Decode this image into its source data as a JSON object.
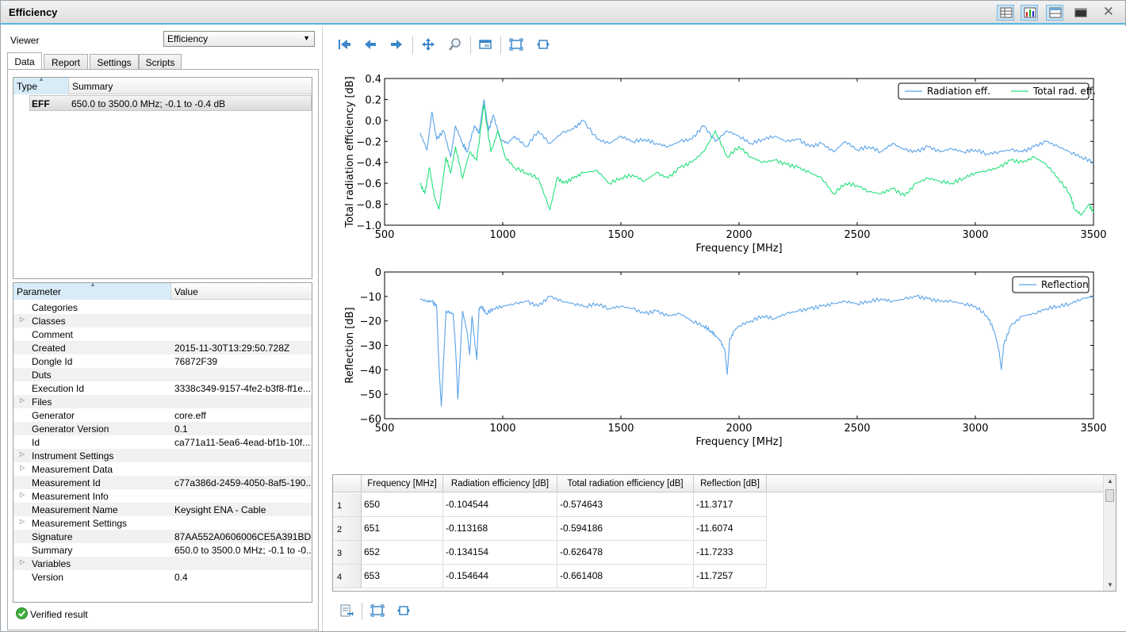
{
  "window": {
    "title": "Efficiency"
  },
  "left": {
    "viewer_label": "Viewer",
    "viewer_value": "Efficiency",
    "tabs": [
      "Data",
      "Report",
      "Settings",
      "Scripts"
    ],
    "results_grid": {
      "headers": [
        "Type",
        "Summary"
      ],
      "rows": [
        {
          "type": "EFF",
          "summary": "650.0 to 3500.0 MHz; -0.1 to -0.4 dB"
        }
      ]
    },
    "params_grid": {
      "headers": [
        "Parameter",
        "Value"
      ],
      "rows": [
        {
          "name": "Categories",
          "value": "",
          "expandable": false
        },
        {
          "name": "Classes",
          "value": "",
          "expandable": true
        },
        {
          "name": "Comment",
          "value": "",
          "expandable": false
        },
        {
          "name": "Created",
          "value": "2015-11-30T13:29:50.728Z",
          "expandable": false
        },
        {
          "name": "Dongle Id",
          "value": "76872F39",
          "expandable": false
        },
        {
          "name": "Duts",
          "value": "",
          "expandable": false
        },
        {
          "name": "Execution Id",
          "value": "3338c349-9157-4fe2-b3f8-ff1e...",
          "expandable": false
        },
        {
          "name": "Files",
          "value": "",
          "expandable": true
        },
        {
          "name": "Generator",
          "value": "core.eff",
          "expandable": false
        },
        {
          "name": "Generator Version",
          "value": "0.1",
          "expandable": false
        },
        {
          "name": "Id",
          "value": "ca771a11-5ea6-4ead-bf1b-10f...",
          "expandable": false
        },
        {
          "name": "Instrument Settings",
          "value": "",
          "expandable": true
        },
        {
          "name": "Measurement Data",
          "value": "",
          "expandable": true
        },
        {
          "name": "Measurement Id",
          "value": "c77a386d-2459-4050-8af5-190...",
          "expandable": false
        },
        {
          "name": "Measurement Info",
          "value": "",
          "expandable": true
        },
        {
          "name": "Measurement Name",
          "value": "Keysight ENA - Cable",
          "expandable": false
        },
        {
          "name": "Measurement Settings",
          "value": "",
          "expandable": true
        },
        {
          "name": "Signature",
          "value": "87AA552A0606006CE5A391BD...",
          "expandable": false
        },
        {
          "name": "Summary",
          "value": "650.0 to 3500.0 MHz; -0.1 to -0...",
          "expandable": false
        },
        {
          "name": "Variables",
          "value": "",
          "expandable": true
        },
        {
          "name": "Version",
          "value": "0.4",
          "expandable": false
        }
      ]
    },
    "status": "Verified result"
  },
  "table": {
    "headers": [
      "Frequency [MHz]",
      "Radiation efficiency [dB]",
      "Total radiation efficiency [dB]",
      "Reflection [dB]"
    ],
    "rows": [
      [
        "650",
        "-0.104544",
        "-0.574643",
        "-11.3717"
      ],
      [
        "651",
        "-0.113168",
        "-0.594186",
        "-11.6074"
      ],
      [
        "652",
        "-0.134154",
        "-0.626478",
        "-11.7233"
      ],
      [
        "653",
        "-0.154644",
        "-0.661408",
        "-11.7257"
      ]
    ],
    "row_numbers": [
      "1",
      "2",
      "3",
      "4"
    ]
  },
  "colors": {
    "accent": "#55b7e6",
    "radiation": "#5aa3e8",
    "total": "#22e07a",
    "reflection": "#5aa3e8"
  },
  "chart_data": [
    {
      "type": "line",
      "title": "",
      "xlabel": "Frequency [MHz]",
      "ylabel": "Total radiation efficiency [dB]",
      "xlim": [
        500,
        3500
      ],
      "ylim": [
        -1.0,
        0.4
      ],
      "xticks": [
        500,
        1000,
        1500,
        2000,
        2500,
        3000,
        3500
      ],
      "yticks": [
        "0.4",
        "0.2",
        "0.0",
        "−0.2",
        "−0.4",
        "−0.6",
        "−0.8",
        "−1.0"
      ],
      "ytick_values": [
        0.4,
        0.2,
        0.0,
        -0.2,
        -0.4,
        -0.6,
        -0.8,
        -1.0
      ],
      "legend": "top-right",
      "series": [
        {
          "name": "Radiation eff.",
          "x": [
            650,
            680,
            700,
            720,
            750,
            780,
            800,
            830,
            850,
            880,
            900,
            920,
            940,
            960,
            990,
            1020,
            1050,
            1100,
            1150,
            1200,
            1250,
            1300,
            1340,
            1400,
            1450,
            1500,
            1550,
            1600,
            1650,
            1700,
            1750,
            1800,
            1850,
            1900,
            1950,
            2000,
            2050,
            2100,
            2150,
            2200,
            2250,
            2300,
            2350,
            2400,
            2450,
            2500,
            2550,
            2600,
            2650,
            2700,
            2750,
            2800,
            2850,
            2900,
            2950,
            3000,
            3050,
            3100,
            3150,
            3200,
            3250,
            3300,
            3350,
            3400,
            3450,
            3500
          ],
          "y": [
            -0.12,
            -0.28,
            0.08,
            -0.18,
            -0.1,
            -0.35,
            -0.05,
            -0.22,
            -0.3,
            -0.05,
            -0.12,
            0.2,
            -0.1,
            0.05,
            -0.18,
            -0.22,
            -0.15,
            -0.25,
            -0.1,
            -0.22,
            -0.12,
            -0.08,
            0.0,
            -0.18,
            -0.22,
            -0.15,
            -0.2,
            -0.18,
            -0.22,
            -0.25,
            -0.2,
            -0.18,
            -0.05,
            -0.2,
            -0.1,
            -0.15,
            -0.22,
            -0.18,
            -0.15,
            -0.2,
            -0.18,
            -0.25,
            -0.22,
            -0.3,
            -0.2,
            -0.28,
            -0.25,
            -0.3,
            -0.22,
            -0.28,
            -0.3,
            -0.25,
            -0.3,
            -0.27,
            -0.3,
            -0.28,
            -0.32,
            -0.3,
            -0.28,
            -0.3,
            -0.25,
            -0.2,
            -0.25,
            -0.3,
            -0.35,
            -0.4
          ]
        },
        {
          "name": "Total rad. eff.",
          "x": [
            650,
            670,
            690,
            710,
            730,
            760,
            780,
            800,
            830,
            860,
            890,
            920,
            950,
            980,
            1010,
            1050,
            1100,
            1150,
            1200,
            1230,
            1260,
            1300,
            1340,
            1400,
            1450,
            1500,
            1550,
            1600,
            1650,
            1700,
            1750,
            1800,
            1850,
            1900,
            1950,
            2000,
            2050,
            2100,
            2150,
            2200,
            2250,
            2300,
            2350,
            2400,
            2450,
            2500,
            2550,
            2600,
            2650,
            2700,
            2750,
            2800,
            2850,
            2900,
            2950,
            3000,
            3050,
            3100,
            3150,
            3200,
            3250,
            3300,
            3350,
            3400,
            3420,
            3450,
            3480,
            3500
          ],
          "y": [
            -0.6,
            -0.7,
            -0.45,
            -0.72,
            -0.85,
            -0.35,
            -0.5,
            -0.25,
            -0.55,
            -0.3,
            -0.38,
            0.15,
            -0.3,
            -0.1,
            -0.35,
            -0.45,
            -0.5,
            -0.55,
            -0.85,
            -0.55,
            -0.6,
            -0.55,
            -0.5,
            -0.48,
            -0.6,
            -0.55,
            -0.52,
            -0.58,
            -0.5,
            -0.55,
            -0.45,
            -0.4,
            -0.3,
            -0.1,
            -0.35,
            -0.25,
            -0.35,
            -0.4,
            -0.38,
            -0.42,
            -0.45,
            -0.5,
            -0.55,
            -0.7,
            -0.6,
            -0.62,
            -0.68,
            -0.7,
            -0.65,
            -0.72,
            -0.6,
            -0.55,
            -0.58,
            -0.6,
            -0.55,
            -0.5,
            -0.48,
            -0.45,
            -0.38,
            -0.4,
            -0.35,
            -0.42,
            -0.55,
            -0.7,
            -0.85,
            -0.9,
            -0.8,
            -0.88
          ]
        }
      ]
    },
    {
      "type": "line",
      "title": "",
      "xlabel": "Frequency [MHz]",
      "ylabel": "Reflection [dB]",
      "xlim": [
        500,
        3500
      ],
      "ylim": [
        -60,
        0
      ],
      "xticks": [
        500,
        1000,
        1500,
        2000,
        2500,
        3000,
        3500
      ],
      "yticks": [
        "0",
        "−10",
        "−20",
        "−30",
        "−40",
        "−50",
        "−60"
      ],
      "ytick_values": [
        0,
        -10,
        -20,
        -30,
        -40,
        -50,
        -60
      ],
      "legend": "top-right",
      "series": [
        {
          "name": "Reflection",
          "x": [
            650,
            680,
            700,
            720,
            730,
            740,
            760,
            790,
            800,
            810,
            830,
            850,
            860,
            870,
            890,
            900,
            910,
            930,
            960,
            1000,
            1050,
            1100,
            1150,
            1200,
            1250,
            1300,
            1350,
            1400,
            1450,
            1500,
            1550,
            1600,
            1650,
            1700,
            1750,
            1800,
            1850,
            1880,
            1900,
            1920,
            1940,
            1950,
            1960,
            1980,
            2000,
            2050,
            2100,
            2150,
            2200,
            2250,
            2300,
            2350,
            2400,
            2450,
            2500,
            2550,
            2600,
            2650,
            2700,
            2750,
            2800,
            2850,
            2900,
            2950,
            3000,
            3050,
            3080,
            3100,
            3110,
            3120,
            3150,
            3200,
            3250,
            3300,
            3350,
            3400,
            3450,
            3500
          ],
          "y": [
            -11,
            -12,
            -12,
            -14,
            -38,
            -55,
            -16,
            -17,
            -30,
            -52,
            -16,
            -25,
            -34,
            -18,
            -36,
            -15,
            -14,
            -17,
            -15,
            -14,
            -13,
            -12,
            -14,
            -10,
            -12,
            -13,
            -14,
            -13,
            -15,
            -14,
            -15,
            -17,
            -16,
            -18,
            -17,
            -20,
            -22,
            -24,
            -26,
            -28,
            -32,
            -42,
            -28,
            -24,
            -22,
            -20,
            -18,
            -19,
            -17,
            -16,
            -15,
            -14,
            -13,
            -12,
            -13,
            -12,
            -11,
            -12,
            -11,
            -10,
            -11,
            -12,
            -12,
            -13,
            -14,
            -18,
            -24,
            -32,
            -40,
            -30,
            -22,
            -18,
            -17,
            -15,
            -14,
            -13,
            -11,
            -10
          ]
        }
      ]
    }
  ]
}
